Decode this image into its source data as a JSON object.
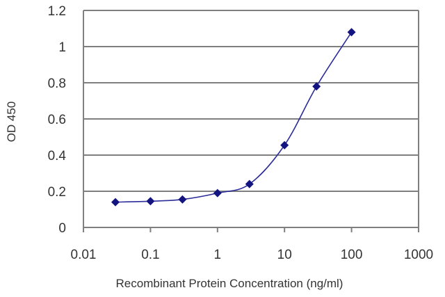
{
  "chart_data": {
    "type": "line",
    "title": "",
    "xlabel": "Recombinant Protein Concentration (ng/ml)",
    "ylabel": "OD 450",
    "x_scale": "log",
    "xlim": [
      0.01,
      1000
    ],
    "ylim": [
      0,
      1.2
    ],
    "x_ticks": [
      "0.01",
      "0.1",
      "1",
      "10",
      "100",
      "1000"
    ],
    "y_ticks": [
      "0",
      "0.2",
      "0.4",
      "0.6",
      "0.8",
      "1",
      "1.2"
    ],
    "grid": "horizontal",
    "legend": "none",
    "series": [
      {
        "x": [
          0.03,
          0.1,
          0.3,
          1,
          3,
          10,
          30,
          100
        ],
        "y": [
          0.14,
          0.145,
          0.155,
          0.19,
          0.24,
          0.455,
          0.78,
          1.08
        ]
      }
    ],
    "colors": {
      "line": "#2b2b9a",
      "marker": "#141480",
      "grid": "#7f7f7f",
      "plot_bg": "#ffffff"
    }
  }
}
